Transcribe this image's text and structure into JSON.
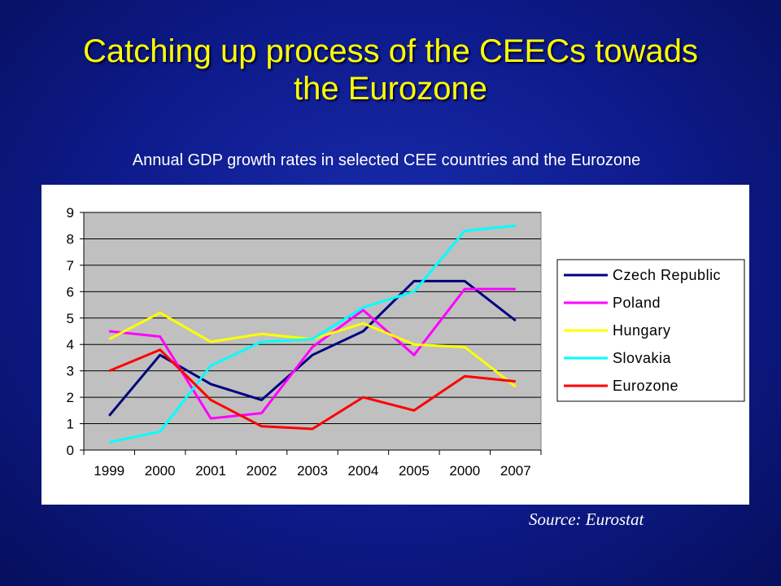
{
  "slide": {
    "title_line1": "Catching up process of the CEECs towads",
    "title_line2": "the Eurozone",
    "subtitle": "Annual GDP growth rates in selected CEE countries and the Eurozone",
    "source": "Source: Eurostat"
  },
  "chart_data": {
    "type": "line",
    "categories": [
      "1999",
      "2000",
      "2001",
      "2002",
      "2003",
      "2004",
      "2005",
      "2000",
      "2007"
    ],
    "ylim": [
      0,
      9
    ],
    "yticks": [
      "0",
      "1",
      "2",
      "3",
      "4",
      "5",
      "6",
      "7",
      "8",
      "9"
    ],
    "grid": true,
    "legend_position": "right",
    "plot_background": "#c0c0c0",
    "series": [
      {
        "name": "Czech Republic",
        "color": "#000080",
        "values": [
          1.3,
          3.6,
          2.5,
          1.9,
          3.6,
          4.5,
          6.4,
          6.4,
          4.9
        ]
      },
      {
        "name": "Poland",
        "color": "#ff00ff",
        "values": [
          4.5,
          4.3,
          1.2,
          1.4,
          3.9,
          5.3,
          3.6,
          6.1,
          6.1
        ]
      },
      {
        "name": "Hungary",
        "color": "#ffff00",
        "values": [
          4.2,
          5.2,
          4.1,
          4.4,
          4.2,
          4.8,
          4.0,
          3.9,
          2.4
        ]
      },
      {
        "name": "Slovakia",
        "color": "#00ffff",
        "values": [
          0.3,
          0.7,
          3.2,
          4.1,
          4.2,
          5.4,
          6.0,
          8.3,
          8.5
        ]
      },
      {
        "name": "Eurozone",
        "color": "#ff0000",
        "values": [
          3.0,
          3.8,
          1.9,
          0.9,
          0.8,
          2.0,
          1.5,
          2.8,
          2.6
        ]
      }
    ]
  }
}
